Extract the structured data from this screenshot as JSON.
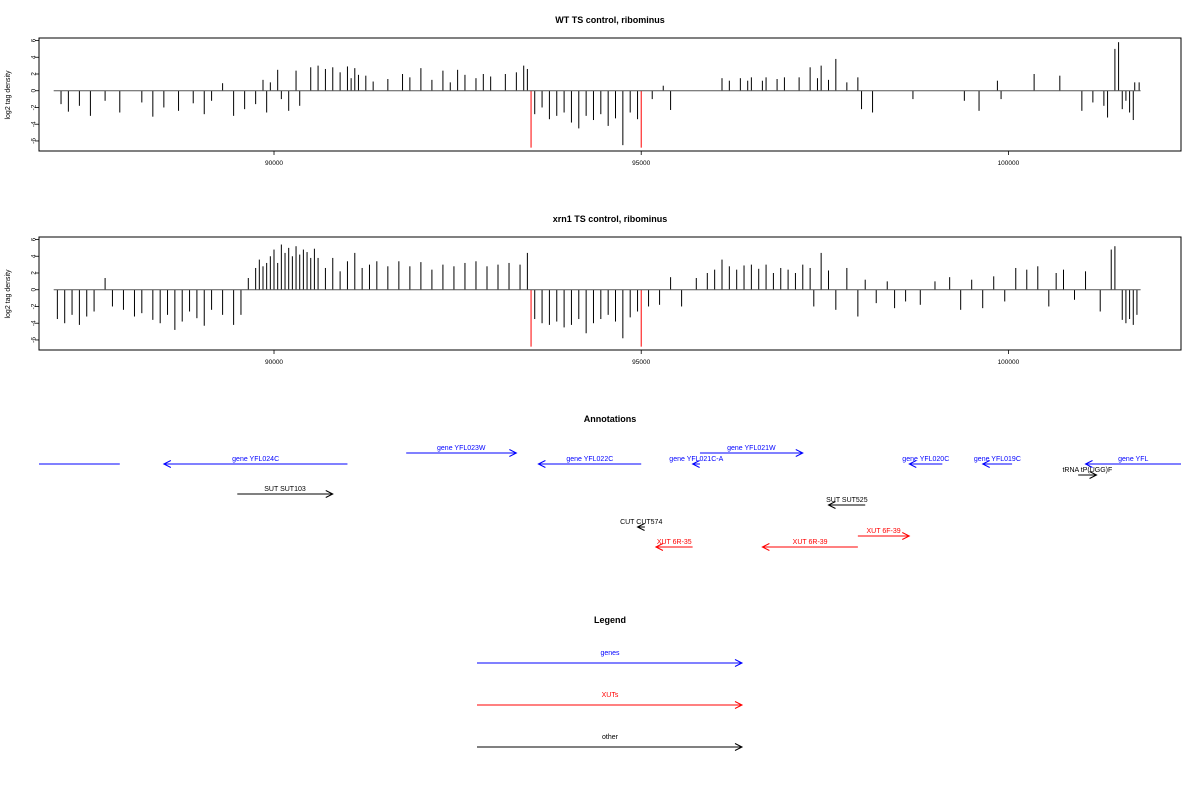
{
  "colors": {
    "gene": "#0000ff",
    "xut": "#ff0000",
    "other": "#000000",
    "bar": "#000000",
    "highlight": "#ff0000"
  },
  "chart_data": [
    {
      "type": "bar",
      "title": "WT TS control, ribominus",
      "ylabel": "log2 tag density",
      "xlim": [
        86800,
        102350
      ],
      "ylim": [
        -7.2,
        6.3
      ],
      "xticks": [
        90000,
        95000,
        100000
      ],
      "xtick_labels": [
        "90000",
        "95000",
        "100000"
      ],
      "yticks": [
        6,
        4,
        2,
        0,
        -2,
        -4,
        -6
      ],
      "ytick_labels": [
        "6",
        "4",
        "2",
        "0",
        "-2",
        "-4",
        "-6"
      ],
      "baseline_range": [
        87000,
        101800
      ],
      "highlights": [
        [
          93500,
          -6.8
        ],
        [
          95000,
          -6.8
        ]
      ],
      "bars": [
        [
          87100,
          -1.6
        ],
        [
          87200,
          -2.5
        ],
        [
          87350,
          -1.8
        ],
        [
          87500,
          -3.0
        ],
        [
          87700,
          -1.2
        ],
        [
          87900,
          -2.6
        ],
        [
          88200,
          -1.4
        ],
        [
          88350,
          -3.1
        ],
        [
          88500,
          -2.0
        ],
        [
          88700,
          -2.4
        ],
        [
          88900,
          -1.5
        ],
        [
          89050,
          -2.8
        ],
        [
          89150,
          -1.2
        ],
        [
          89300,
          0.9
        ],
        [
          89450,
          -3.0
        ],
        [
          89600,
          -2.2
        ],
        [
          89750,
          -1.6
        ],
        [
          89900,
          -2.6
        ],
        [
          90100,
          -1.0
        ],
        [
          90200,
          -2.4
        ],
        [
          90350,
          -1.8
        ],
        [
          89850,
          1.3
        ],
        [
          89950,
          1.0
        ],
        [
          90050,
          2.5
        ],
        [
          90300,
          2.4
        ],
        [
          90500,
          2.8
        ],
        [
          90600,
          3.0
        ],
        [
          90700,
          2.6
        ],
        [
          90800,
          2.8
        ],
        [
          90900,
          2.2
        ],
        [
          91000,
          2.9
        ],
        [
          91050,
          1.5
        ],
        [
          91100,
          2.7
        ],
        [
          91150,
          1.9
        ],
        [
          91250,
          1.8
        ],
        [
          91350,
          1.1
        ],
        [
          91550,
          1.4
        ],
        [
          91750,
          2.0
        ],
        [
          91850,
          1.6
        ],
        [
          92000,
          2.7
        ],
        [
          92150,
          1.3
        ],
        [
          92300,
          2.4
        ],
        [
          92400,
          1.0
        ],
        [
          92500,
          2.5
        ],
        [
          92600,
          1.9
        ],
        [
          92750,
          1.5
        ],
        [
          92850,
          2.0
        ],
        [
          92950,
          1.7
        ],
        [
          93150,
          2.0
        ],
        [
          93300,
          2.2
        ],
        [
          93400,
          3.0
        ],
        [
          93450,
          2.6
        ],
        [
          93550,
          -2.8
        ],
        [
          93650,
          -2.0
        ],
        [
          93750,
          -3.4
        ],
        [
          93850,
          -3.0
        ],
        [
          93950,
          -2.6
        ],
        [
          94050,
          -3.8
        ],
        [
          94150,
          -4.5
        ],
        [
          94250,
          -3.0
        ],
        [
          94350,
          -3.5
        ],
        [
          94450,
          -2.8
        ],
        [
          94550,
          -4.2
        ],
        [
          94650,
          -3.3
        ],
        [
          94750,
          -6.5
        ],
        [
          94850,
          -2.6
        ],
        [
          94950,
          -3.4
        ],
        [
          95150,
          -1.0
        ],
        [
          95400,
          -2.3
        ],
        [
          95300,
          0.6
        ],
        [
          96100,
          1.5
        ],
        [
          96200,
          1.2
        ],
        [
          96350,
          1.5
        ],
        [
          96450,
          1.2
        ],
        [
          96500,
          1.6
        ],
        [
          96650,
          1.2
        ],
        [
          96700,
          1.6
        ],
        [
          96850,
          1.4
        ],
        [
          96950,
          1.6
        ],
        [
          97150,
          1.6
        ],
        [
          97300,
          2.8
        ],
        [
          97400,
          1.5
        ],
        [
          97450,
          3.0
        ],
        [
          97550,
          1.3
        ],
        [
          97650,
          3.8
        ],
        [
          97800,
          1.0
        ],
        [
          97950,
          1.6
        ],
        [
          98000,
          -2.2
        ],
        [
          98150,
          -2.6
        ],
        [
          98700,
          -1.0
        ],
        [
          99400,
          -1.2
        ],
        [
          99600,
          -2.4
        ],
        [
          99850,
          1.2
        ],
        [
          99900,
          -1.0
        ],
        [
          100350,
          2.0
        ],
        [
          100700,
          1.8
        ],
        [
          101000,
          -2.4
        ],
        [
          101150,
          -1.4
        ],
        [
          101300,
          -1.8
        ],
        [
          101350,
          -3.2
        ],
        [
          101450,
          5.0
        ],
        [
          101500,
          5.8
        ],
        [
          101550,
          -2.2
        ],
        [
          101600,
          -1.2
        ],
        [
          101650,
          -2.6
        ],
        [
          101700,
          -3.5
        ],
        [
          101720,
          1.0
        ],
        [
          101780,
          1.0
        ]
      ]
    },
    {
      "type": "bar",
      "title": "xrn1 TS control, ribominus",
      "ylabel": "log2 tag density",
      "xlim": [
        86800,
        102350
      ],
      "ylim": [
        -7.2,
        6.3
      ],
      "xticks": [
        90000,
        95000,
        100000
      ],
      "xtick_labels": [
        "90000",
        "95000",
        "100000"
      ],
      "yticks": [
        6,
        4,
        2,
        0,
        -2,
        -4,
        -6
      ],
      "ytick_labels": [
        "6",
        "4",
        "2",
        "0",
        "-2",
        "-4",
        "-6"
      ],
      "baseline_range": [
        87000,
        101800
      ],
      "highlights": [
        [
          93500,
          -6.8
        ],
        [
          95000,
          -6.8
        ]
      ],
      "bars": [
        [
          87050,
          -3.5
        ],
        [
          87150,
          -4.0
        ],
        [
          87250,
          -3.0
        ],
        [
          87350,
          -4.2
        ],
        [
          87450,
          -3.2
        ],
        [
          87550,
          -2.6
        ],
        [
          87700,
          1.4
        ],
        [
          87800,
          -2.0
        ],
        [
          87950,
          -2.4
        ],
        [
          88100,
          -3.2
        ],
        [
          88200,
          -2.8
        ],
        [
          88350,
          -3.6
        ],
        [
          88450,
          -4.0
        ],
        [
          88550,
          -3.0
        ],
        [
          88650,
          -4.8
        ],
        [
          88750,
          -3.8
        ],
        [
          88850,
          -2.6
        ],
        [
          88950,
          -3.4
        ],
        [
          89050,
          -4.3
        ],
        [
          89150,
          -2.4
        ],
        [
          89300,
          -3.0
        ],
        [
          89450,
          -4.2
        ],
        [
          89550,
          -3.0
        ],
        [
          89650,
          1.4
        ],
        [
          89750,
          2.6
        ],
        [
          89800,
          3.6
        ],
        [
          89850,
          2.8
        ],
        [
          89900,
          3.2
        ],
        [
          89950,
          4.0
        ],
        [
          90000,
          4.8
        ],
        [
          90050,
          3.2
        ],
        [
          90100,
          5.4
        ],
        [
          90150,
          4.4
        ],
        [
          90200,
          5.0
        ],
        [
          90250,
          4.0
        ],
        [
          90300,
          5.2
        ],
        [
          90350,
          4.2
        ],
        [
          90400,
          4.8
        ],
        [
          90450,
          4.5
        ],
        [
          90500,
          3.8
        ],
        [
          90550,
          4.9
        ],
        [
          90600,
          3.8
        ],
        [
          90700,
          2.6
        ],
        [
          90800,
          3.8
        ],
        [
          90900,
          2.2
        ],
        [
          91000,
          3.4
        ],
        [
          91100,
          4.4
        ],
        [
          91200,
          2.6
        ],
        [
          91300,
          3.0
        ],
        [
          91400,
          3.4
        ],
        [
          91550,
          2.8
        ],
        [
          91700,
          3.4
        ],
        [
          91850,
          2.8
        ],
        [
          92000,
          3.3
        ],
        [
          92150,
          2.4
        ],
        [
          92300,
          3.0
        ],
        [
          92450,
          2.8
        ],
        [
          92600,
          3.2
        ],
        [
          92750,
          3.4
        ],
        [
          92900,
          2.8
        ],
        [
          93050,
          3.0
        ],
        [
          93200,
          3.2
        ],
        [
          93350,
          3.0
        ],
        [
          93450,
          4.4
        ],
        [
          93550,
          -3.5
        ],
        [
          93650,
          -4.0
        ],
        [
          93750,
          -4.2
        ],
        [
          93850,
          -3.8
        ],
        [
          93950,
          -4.5
        ],
        [
          94050,
          -4.2
        ],
        [
          94150,
          -3.5
        ],
        [
          94250,
          -5.2
        ],
        [
          94350,
          -4.0
        ],
        [
          94450,
          -3.5
        ],
        [
          94550,
          -3.0
        ],
        [
          94650,
          -3.8
        ],
        [
          94750,
          -5.8
        ],
        [
          94850,
          -3.3
        ],
        [
          94950,
          -2.6
        ],
        [
          95100,
          -2.0
        ],
        [
          95250,
          -1.8
        ],
        [
          95400,
          1.5
        ],
        [
          95550,
          -2.0
        ],
        [
          95750,
          1.4
        ],
        [
          95900,
          2.0
        ],
        [
          96000,
          2.4
        ],
        [
          96100,
          3.6
        ],
        [
          96200,
          2.8
        ],
        [
          96300,
          2.4
        ],
        [
          96400,
          2.9
        ],
        [
          96500,
          3.0
        ],
        [
          96600,
          2.5
        ],
        [
          96700,
          3.0
        ],
        [
          96800,
          2.0
        ],
        [
          96900,
          2.6
        ],
        [
          97000,
          2.4
        ],
        [
          97100,
          2.0
        ],
        [
          97200,
          3.0
        ],
        [
          97300,
          2.6
        ],
        [
          97350,
          -2.0
        ],
        [
          97450,
          4.4
        ],
        [
          97550,
          2.3
        ],
        [
          97650,
          -2.4
        ],
        [
          97800,
          2.6
        ],
        [
          97950,
          -3.2
        ],
        [
          98050,
          1.2
        ],
        [
          98200,
          -1.6
        ],
        [
          98350,
          1.0
        ],
        [
          98450,
          -2.2
        ],
        [
          98600,
          -1.4
        ],
        [
          98800,
          -1.8
        ],
        [
          99000,
          1.0
        ],
        [
          99200,
          1.5
        ],
        [
          99350,
          -2.4
        ],
        [
          99500,
          1.2
        ],
        [
          99650,
          -2.2
        ],
        [
          99800,
          1.6
        ],
        [
          99950,
          -1.4
        ],
        [
          100100,
          2.6
        ],
        [
          100250,
          2.4
        ],
        [
          100400,
          2.8
        ],
        [
          100550,
          -2.0
        ],
        [
          100650,
          2.0
        ],
        [
          100750,
          2.4
        ],
        [
          100900,
          -1.2
        ],
        [
          101050,
          2.2
        ],
        [
          101250,
          -2.6
        ],
        [
          101400,
          4.8
        ],
        [
          101450,
          5.2
        ],
        [
          101550,
          -3.6
        ],
        [
          101600,
          -4.0
        ],
        [
          101650,
          -3.5
        ],
        [
          101700,
          -4.2
        ],
        [
          101750,
          -3.0
        ]
      ]
    }
  ],
  "annotations": {
    "title": "Annotations",
    "xlim": [
      86800,
      102350
    ],
    "features": [
      {
        "label": "",
        "type": "gene",
        "start": 86800,
        "end": 87900,
        "strand": "none",
        "row": 2
      },
      {
        "label": "gene YFL024C",
        "type": "gene",
        "start": 88500,
        "end": 91000,
        "strand": "-",
        "row": 2
      },
      {
        "label": "gene YFL023W",
        "type": "gene",
        "start": 91800,
        "end": 93300,
        "strand": "+",
        "row": 1
      },
      {
        "label": "gene YFL022C",
        "type": "gene",
        "start": 93600,
        "end": 95000,
        "strand": "-",
        "row": 2
      },
      {
        "label": "gene YFL021W",
        "type": "gene",
        "start": 95800,
        "end": 97200,
        "strand": "+",
        "row": 1
      },
      {
        "label": "gene YFL021C-A",
        "type": "gene",
        "start": 95700,
        "end": 95800,
        "strand": "-",
        "row": 2
      },
      {
        "label": "gene YFL020C",
        "type": "gene",
        "start": 98650,
        "end": 99100,
        "strand": "-",
        "row": 2
      },
      {
        "label": "gene YFL019C",
        "type": "gene",
        "start": 99650,
        "end": 100050,
        "strand": "-",
        "row": 2
      },
      {
        "label": "gene YFL",
        "type": "gene",
        "start": 101050,
        "end": 102350,
        "strand": "-",
        "row": 2
      },
      {
        "label": "tRNA tP(UGG)F",
        "type": "other",
        "start": 100950,
        "end": 101200,
        "strand": "+",
        "row": 3
      },
      {
        "label": "SUT SUT103",
        "type": "other",
        "start": 89500,
        "end": 90800,
        "strand": "+",
        "row": 4
      },
      {
        "label": "SUT SUT525",
        "type": "other",
        "start": 97550,
        "end": 98050,
        "strand": "-",
        "row": 5
      },
      {
        "label": "CUT CUT574",
        "type": "other",
        "start": 94950,
        "end": 95050,
        "strand": "-",
        "row": 6
      },
      {
        "label": "XUT 6R-35",
        "type": "xut",
        "start": 95200,
        "end": 95700,
        "strand": "-",
        "row": 7
      },
      {
        "label": "XUT 6R-39",
        "type": "xut",
        "start": 96650,
        "end": 97950,
        "strand": "-",
        "row": 7
      },
      {
        "label": "XUT 6F-39",
        "type": "xut",
        "start": 97950,
        "end": 98650,
        "strand": "+",
        "row": 8
      }
    ]
  },
  "legend": {
    "title": "Legend",
    "items": [
      {
        "label": "genes",
        "type": "gene"
      },
      {
        "label": "XUTs",
        "type": "xut"
      },
      {
        "label": "other",
        "type": "other"
      }
    ]
  }
}
